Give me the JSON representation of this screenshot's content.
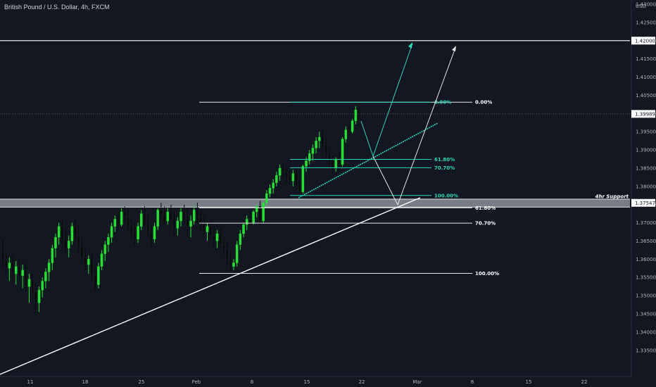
{
  "header": {
    "title": "British Pound / U.S. Dollar, 4h, FXCM"
  },
  "chart_data": {
    "type": "candlestick",
    "title": "British Pound / U.S. Dollar, 4h, FXCM",
    "symbol": "GBPUSD",
    "timeframe": "4h",
    "source": "FXCM",
    "currency_label": "USD",
    "ylim": [
      1.328,
      1.43
    ],
    "y_ticks": [
      "1.43000",
      "1.42500",
      "1.42000",
      "1.41500",
      "1.41000",
      "1.40500",
      "1.40000",
      "1.39500",
      "1.39000",
      "1.38500",
      "1.38000",
      "1.37500",
      "1.37000",
      "1.36500",
      "1.36000",
      "1.35500",
      "1.35000",
      "1.34500",
      "1.34000",
      "1.33500"
    ],
    "x_ticks": [
      "11",
      "18",
      "25",
      "Feb",
      "8",
      "15",
      "22",
      "Mar",
      "8",
      "15",
      "22"
    ],
    "grid": false,
    "colors": {
      "background": "#131722",
      "up": "#26e034",
      "down": "#0a0a0a",
      "teal": "#2ad8b4",
      "white": "#e8e8e8",
      "zone": "#9aa0a8"
    },
    "candles": [
      {
        "o": 1.3625,
        "h": 1.3655,
        "l": 1.3575,
        "c": 1.3595
      },
      {
        "o": 1.3595,
        "h": 1.362,
        "l": 1.356,
        "c": 1.3575
      },
      {
        "o": 1.3575,
        "h": 1.3605,
        "l": 1.354,
        "c": 1.359
      },
      {
        "o": 1.359,
        "h": 1.361,
        "l": 1.355,
        "c": 1.356
      },
      {
        "o": 1.356,
        "h": 1.3595,
        "l": 1.353,
        "c": 1.358
      },
      {
        "o": 1.358,
        "h": 1.36,
        "l": 1.3545,
        "c": 1.3555
      },
      {
        "o": 1.3555,
        "h": 1.3585,
        "l": 1.352,
        "c": 1.357
      },
      {
        "o": 1.357,
        "h": 1.359,
        "l": 1.351,
        "c": 1.3525
      },
      {
        "o": 1.3525,
        "h": 1.356,
        "l": 1.348,
        "c": 1.3545
      },
      {
        "o": 1.3545,
        "h": 1.356,
        "l": 1.3495,
        "c": 1.351
      },
      {
        "o": 1.351,
        "h": 1.3535,
        "l": 1.346,
        "c": 1.348
      },
      {
        "o": 1.348,
        "h": 1.3525,
        "l": 1.3455,
        "c": 1.3515
      },
      {
        "o": 1.3515,
        "h": 1.355,
        "l": 1.3495,
        "c": 1.354
      },
      {
        "o": 1.354,
        "h": 1.3575,
        "l": 1.352,
        "c": 1.3565
      },
      {
        "o": 1.3565,
        "h": 1.36,
        "l": 1.354,
        "c": 1.359
      },
      {
        "o": 1.359,
        "h": 1.364,
        "l": 1.357,
        "c": 1.363
      },
      {
        "o": 1.363,
        "h": 1.367,
        "l": 1.3605,
        "c": 1.366
      },
      {
        "o": 1.366,
        "h": 1.37,
        "l": 1.364,
        "c": 1.369
      },
      {
        "o": 1.369,
        "h": 1.3705,
        "l": 1.364,
        "c": 1.3655
      },
      {
        "o": 1.3655,
        "h": 1.368,
        "l": 1.3615,
        "c": 1.363
      },
      {
        "o": 1.363,
        "h": 1.3665,
        "l": 1.3605,
        "c": 1.365
      },
      {
        "o": 1.365,
        "h": 1.37,
        "l": 1.364,
        "c": 1.369
      },
      {
        "o": 1.369,
        "h": 1.371,
        "l": 1.365,
        "c": 1.3665
      },
      {
        "o": 1.3665,
        "h": 1.369,
        "l": 1.362,
        "c": 1.3635
      },
      {
        "o": 1.3635,
        "h": 1.366,
        "l": 1.359,
        "c": 1.3605
      },
      {
        "o": 1.3605,
        "h": 1.363,
        "l": 1.357,
        "c": 1.3585
      },
      {
        "o": 1.3585,
        "h": 1.361,
        "l": 1.356,
        "c": 1.36
      },
      {
        "o": 1.36,
        "h": 1.3615,
        "l": 1.354,
        "c": 1.3555
      },
      {
        "o": 1.3555,
        "h": 1.3575,
        "l": 1.3515,
        "c": 1.353
      },
      {
        "o": 1.353,
        "h": 1.359,
        "l": 1.352,
        "c": 1.358
      },
      {
        "o": 1.358,
        "h": 1.3625,
        "l": 1.357,
        "c": 1.3615
      },
      {
        "o": 1.3615,
        "h": 1.365,
        "l": 1.3595,
        "c": 1.364
      },
      {
        "o": 1.364,
        "h": 1.367,
        "l": 1.362,
        "c": 1.366
      },
      {
        "o": 1.366,
        "h": 1.37,
        "l": 1.3645,
        "c": 1.369
      },
      {
        "o": 1.369,
        "h": 1.372,
        "l": 1.3675,
        "c": 1.371
      },
      {
        "o": 1.371,
        "h": 1.373,
        "l": 1.368,
        "c": 1.3695
      },
      {
        "o": 1.3695,
        "h": 1.374,
        "l": 1.369,
        "c": 1.373
      },
      {
        "o": 1.373,
        "h": 1.3745,
        "l": 1.37,
        "c": 1.3715
      },
      {
        "o": 1.3715,
        "h": 1.3735,
        "l": 1.368,
        "c": 1.369
      },
      {
        "o": 1.369,
        "h": 1.371,
        "l": 1.3655,
        "c": 1.367
      },
      {
        "o": 1.367,
        "h": 1.37,
        "l": 1.364,
        "c": 1.3655
      },
      {
        "o": 1.3655,
        "h": 1.37,
        "l": 1.3645,
        "c": 1.369
      },
      {
        "o": 1.369,
        "h": 1.3735,
        "l": 1.368,
        "c": 1.3725
      },
      {
        "o": 1.3725,
        "h": 1.3745,
        "l": 1.369,
        "c": 1.37
      },
      {
        "o": 1.37,
        "h": 1.372,
        "l": 1.366,
        "c": 1.3675
      },
      {
        "o": 1.3675,
        "h": 1.3695,
        "l": 1.363,
        "c": 1.3655
      },
      {
        "o": 1.3655,
        "h": 1.37,
        "l": 1.3645,
        "c": 1.369
      },
      {
        "o": 1.369,
        "h": 1.374,
        "l": 1.368,
        "c": 1.3735
      },
      {
        "o": 1.3735,
        "h": 1.3755,
        "l": 1.3705,
        "c": 1.372
      },
      {
        "o": 1.372,
        "h": 1.3745,
        "l": 1.369,
        "c": 1.3705
      },
      {
        "o": 1.3705,
        "h": 1.374,
        "l": 1.3695,
        "c": 1.373
      },
      {
        "o": 1.373,
        "h": 1.375,
        "l": 1.37,
        "c": 1.3715
      },
      {
        "o": 1.3715,
        "h": 1.373,
        "l": 1.367,
        "c": 1.3685
      },
      {
        "o": 1.3685,
        "h": 1.3715,
        "l": 1.3665,
        "c": 1.3705
      },
      {
        "o": 1.3705,
        "h": 1.374,
        "l": 1.369,
        "c": 1.373
      },
      {
        "o": 1.373,
        "h": 1.375,
        "l": 1.3695,
        "c": 1.371
      },
      {
        "o": 1.371,
        "h": 1.3735,
        "l": 1.367,
        "c": 1.369
      },
      {
        "o": 1.369,
        "h": 1.372,
        "l": 1.366,
        "c": 1.3705
      },
      {
        "o": 1.3705,
        "h": 1.3745,
        "l": 1.3695,
        "c": 1.3735
      },
      {
        "o": 1.3735,
        "h": 1.3755,
        "l": 1.37,
        "c": 1.3715
      },
      {
        "o": 1.3715,
        "h": 1.3735,
        "l": 1.368,
        "c": 1.3695
      },
      {
        "o": 1.3695,
        "h": 1.372,
        "l": 1.3665,
        "c": 1.3675
      },
      {
        "o": 1.3675,
        "h": 1.37,
        "l": 1.365,
        "c": 1.369
      },
      {
        "o": 1.369,
        "h": 1.3705,
        "l": 1.3655,
        "c": 1.3665
      },
      {
        "o": 1.3665,
        "h": 1.369,
        "l": 1.3635,
        "c": 1.365
      },
      {
        "o": 1.365,
        "h": 1.368,
        "l": 1.363,
        "c": 1.367
      },
      {
        "o": 1.367,
        "h": 1.3685,
        "l": 1.363,
        "c": 1.364
      },
      {
        "o": 1.364,
        "h": 1.366,
        "l": 1.361,
        "c": 1.3625
      },
      {
        "o": 1.3625,
        "h": 1.3645,
        "l": 1.358,
        "c": 1.36
      },
      {
        "o": 1.36,
        "h": 1.362,
        "l": 1.3565,
        "c": 1.358
      },
      {
        "o": 1.358,
        "h": 1.36,
        "l": 1.357,
        "c": 1.359
      },
      {
        "o": 1.359,
        "h": 1.365,
        "l": 1.358,
        "c": 1.364
      },
      {
        "o": 1.364,
        "h": 1.368,
        "l": 1.3625,
        "c": 1.367
      },
      {
        "o": 1.367,
        "h": 1.37,
        "l": 1.366,
        "c": 1.3695
      },
      {
        "o": 1.3695,
        "h": 1.372,
        "l": 1.368,
        "c": 1.371
      },
      {
        "o": 1.371,
        "h": 1.373,
        "l": 1.369,
        "c": 1.37
      },
      {
        "o": 1.37,
        "h": 1.3735,
        "l": 1.3695,
        "c": 1.373
      },
      {
        "o": 1.373,
        "h": 1.375,
        "l": 1.3715,
        "c": 1.3745
      },
      {
        "o": 1.3745,
        "h": 1.376,
        "l": 1.369,
        "c": 1.3705
      },
      {
        "o": 1.3705,
        "h": 1.376,
        "l": 1.37,
        "c": 1.3755
      },
      {
        "o": 1.3755,
        "h": 1.379,
        "l": 1.3745,
        "c": 1.378
      },
      {
        "o": 1.378,
        "h": 1.3805,
        "l": 1.377,
        "c": 1.3795
      },
      {
        "o": 1.3795,
        "h": 1.382,
        "l": 1.378,
        "c": 1.381
      },
      {
        "o": 1.381,
        "h": 1.384,
        "l": 1.38,
        "c": 1.383
      },
      {
        "o": 1.383,
        "h": 1.386,
        "l": 1.3815,
        "c": 1.385
      },
      {
        "o": 1.385,
        "h": 1.3865,
        "l": 1.3825,
        "c": 1.384
      },
      {
        "o": 1.384,
        "h": 1.386,
        "l": 1.381,
        "c": 1.3825
      },
      {
        "o": 1.3825,
        "h": 1.385,
        "l": 1.3805,
        "c": 1.3815
      },
      {
        "o": 1.3815,
        "h": 1.3845,
        "l": 1.38,
        "c": 1.3835
      },
      {
        "o": 1.3835,
        "h": 1.385,
        "l": 1.379,
        "c": 1.3805
      },
      {
        "o": 1.3805,
        "h": 1.382,
        "l": 1.3775,
        "c": 1.3785
      },
      {
        "o": 1.3785,
        "h": 1.386,
        "l": 1.378,
        "c": 1.3855
      },
      {
        "o": 1.3855,
        "h": 1.388,
        "l": 1.384,
        "c": 1.387
      },
      {
        "o": 1.387,
        "h": 1.39,
        "l": 1.386,
        "c": 1.389
      },
      {
        "o": 1.389,
        "h": 1.3915,
        "l": 1.387,
        "c": 1.3905
      },
      {
        "o": 1.3905,
        "h": 1.3935,
        "l": 1.389,
        "c": 1.3925
      },
      {
        "o": 1.3925,
        "h": 1.395,
        "l": 1.3905,
        "c": 1.3935
      },
      {
        "o": 1.3935,
        "h": 1.395,
        "l": 1.39,
        "c": 1.3915
      },
      {
        "o": 1.3915,
        "h": 1.393,
        "l": 1.3875,
        "c": 1.389
      },
      {
        "o": 1.389,
        "h": 1.3905,
        "l": 1.386,
        "c": 1.387
      },
      {
        "o": 1.387,
        "h": 1.3885,
        "l": 1.3835,
        "c": 1.385
      },
      {
        "o": 1.385,
        "h": 1.388,
        "l": 1.384,
        "c": 1.3875
      },
      {
        "o": 1.3875,
        "h": 1.389,
        "l": 1.3845,
        "c": 1.386
      },
      {
        "o": 1.386,
        "h": 1.3935,
        "l": 1.3855,
        "c": 1.393
      },
      {
        "o": 1.393,
        "h": 1.3965,
        "l": 1.392,
        "c": 1.3955
      },
      {
        "o": 1.3955,
        "h": 1.397,
        "l": 1.394,
        "c": 1.395
      },
      {
        "o": 1.395,
        "h": 1.3985,
        "l": 1.3945,
        "c": 1.398
      },
      {
        "o": 1.398,
        "h": 1.402,
        "l": 1.397,
        "c": 1.401
      },
      {
        "o": 1.401,
        "h": 1.4015,
        "l": 1.3985,
        "c": 1.3999
      }
    ],
    "horizontal_lines": [
      {
        "name": "top-resistance",
        "price": 1.42
      },
      {
        "name": "current-price",
        "price": 1.39989
      }
    ],
    "support_zone": {
      "label": "4hr Support",
      "price": 1.37547,
      "top": 1.3765,
      "bottom": 1.3743
    },
    "fib_white": [
      {
        "label": "0.00%",
        "price": 1.4031
      },
      {
        "label": "61.80%",
        "price": 1.3741
      },
      {
        "label": "70.70%",
        "price": 1.3699
      },
      {
        "label": "100.00%",
        "price": 1.3561
      }
    ],
    "fib_teal": [
      {
        "label": "0.00%",
        "price": 1.4031
      },
      {
        "label": "61.80%",
        "price": 1.3874
      },
      {
        "label": "70.70%",
        "price": 1.3851
      },
      {
        "label": "100.00%",
        "price": 1.3775
      }
    ],
    "price_tags": [
      {
        "name": "price-tag-1.42000",
        "text": "1.42000",
        "price": 1.42,
        "color": "#ffffff"
      },
      {
        "name": "price-tag-current",
        "text": "1.39989",
        "price": 1.39989,
        "color": "#ffffff"
      },
      {
        "name": "price-tag-support",
        "text": "1.37547",
        "price": 1.37547,
        "color": "#ffffff"
      }
    ]
  }
}
